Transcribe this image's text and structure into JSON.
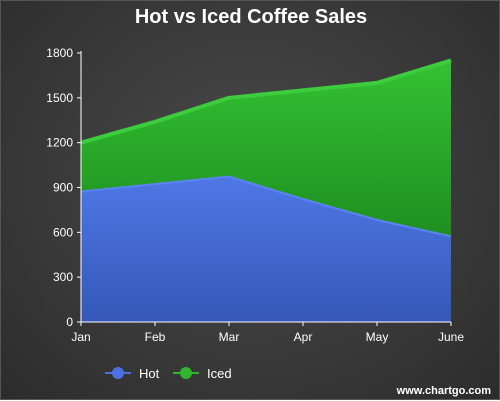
{
  "chart_data": {
    "type": "area",
    "stacked": true,
    "title": "Hot vs Iced Coffee Sales",
    "xlabel": "",
    "ylabel": "",
    "categories": [
      "Jan",
      "Feb",
      "Mar",
      "Apr",
      "May",
      "June"
    ],
    "series": [
      {
        "name": "Hot",
        "values": [
          880,
          930,
          980,
          830,
          690,
          580
        ],
        "color": "#4a72e0"
      },
      {
        "name": "Iced",
        "values": [
          320,
          410,
          520,
          720,
          910,
          1170
        ],
        "color": "#2fb52f"
      }
    ],
    "ylim": [
      0,
      1800
    ],
    "yticks": [
      0,
      300,
      600,
      900,
      1200,
      1500,
      1800
    ],
    "grid": false,
    "legend_position": "bottom-left"
  },
  "watermark": "www.chartgo.com"
}
